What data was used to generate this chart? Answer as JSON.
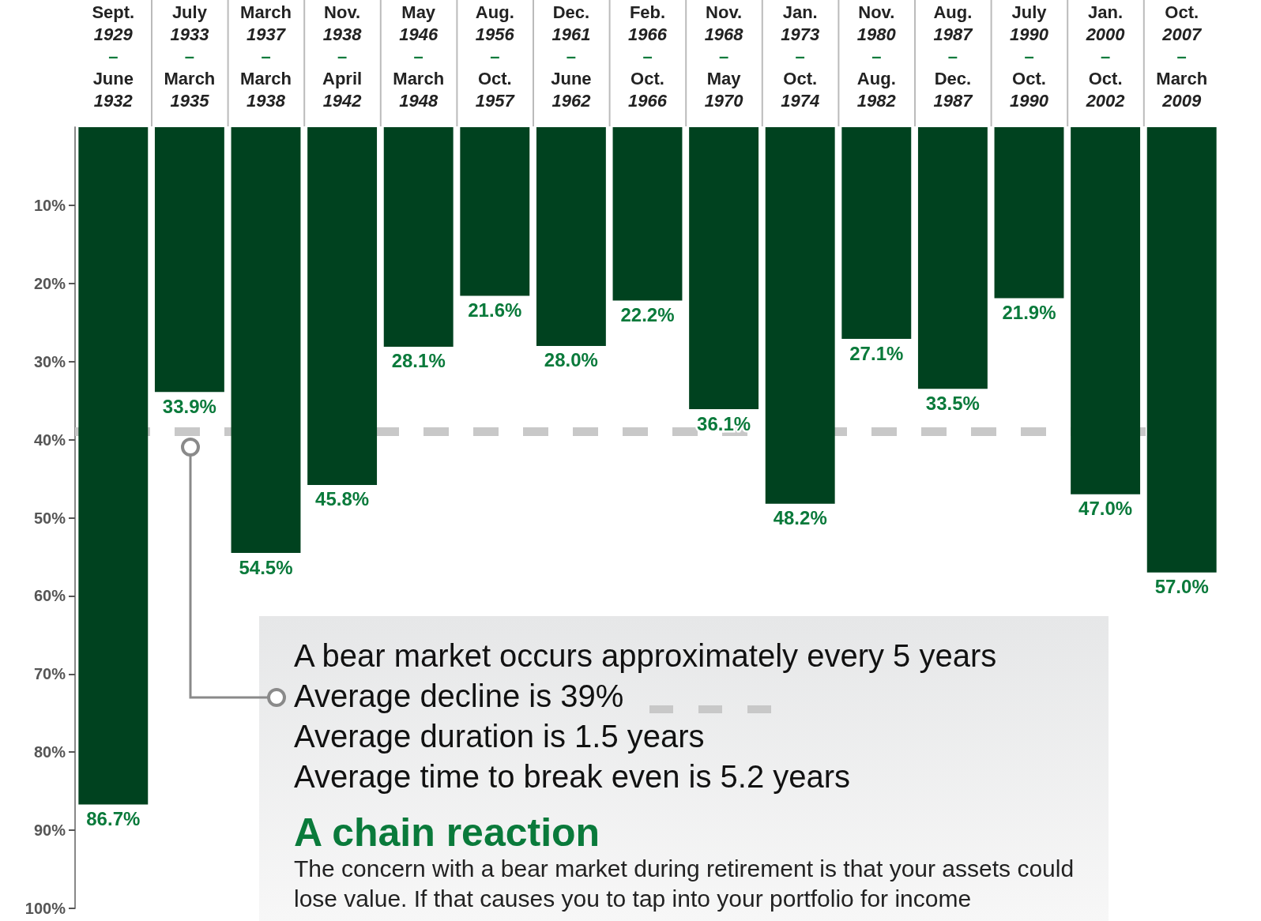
{
  "chart_data": {
    "type": "bar",
    "categories": [
      "Sept.\n1929\n–\nJune\n1932",
      "July\n1933\n–\nMarch\n1935",
      "March\n1937\n–\nMarch\n1938",
      "Nov.\n1938\n–\nApril\n1942",
      "May\n1946\n–\nMarch\n1948",
      "Aug.\n1956\n–\nOct.\n1957",
      "Dec.\n1961\n–\nJune\n1962",
      "Feb.\n1966\n–\nOct.\n1966",
      "Nov.\n1968\n–\nMay\n1970",
      "Jan.\n1973\n–\nOct.\n1974",
      "Nov.\n1980\n–\nAug.\n1982",
      "Aug.\n1987\n–\nDec.\n1987",
      "July\n1990\n–\nOct.\n1990",
      "Jan.\n2000\n–\nOct.\n2002",
      "Oct.\n2007\n–\nMarch\n2009"
    ],
    "values": [
      86.7,
      33.9,
      54.5,
      45.8,
      28.1,
      21.6,
      28.0,
      22.2,
      36.1,
      48.2,
      27.1,
      33.5,
      21.9,
      47.0,
      57.0
    ],
    "value_labels": [
      "86.7%",
      "33.9%",
      "54.5%",
      "45.8%",
      "28.1%",
      "21.6%",
      "28.0%",
      "22.2%",
      "36.1%",
      "48.2%",
      "27.1%",
      "33.5%",
      "21.9%",
      "47.0%",
      "57.0%"
    ],
    "color": "#00421f",
    "ylim": [
      100,
      0
    ],
    "yticks": [
      {
        "value": 10,
        "label": "10%"
      },
      {
        "value": 20,
        "label": "20%"
      },
      {
        "value": 30,
        "label": "30%"
      },
      {
        "value": 40,
        "label": "40%"
      },
      {
        "value": 50,
        "label": "50%"
      },
      {
        "value": 60,
        "label": "60%"
      },
      {
        "value": 70,
        "label": "70%"
      },
      {
        "value": 80,
        "label": "80%"
      },
      {
        "value": 90,
        "label": "90%"
      },
      {
        "value": 100,
        "label": "100%"
      }
    ],
    "ref_lines": [
      {
        "axis": "y",
        "value": 39,
        "color": "#c8c8c8",
        "line_style": "dashed"
      }
    ],
    "annotations": [
      "A bear market occurs approximately every 5 years",
      "Average decline is 39%",
      "Average duration is 1.5 years",
      "Average time to break even is 5.2 years",
      "A chain reaction",
      "The concern with a bear market during retirement is that your assets could lose value. If that causes you to tap into your portfolio for income"
    ],
    "grid": false
  }
}
